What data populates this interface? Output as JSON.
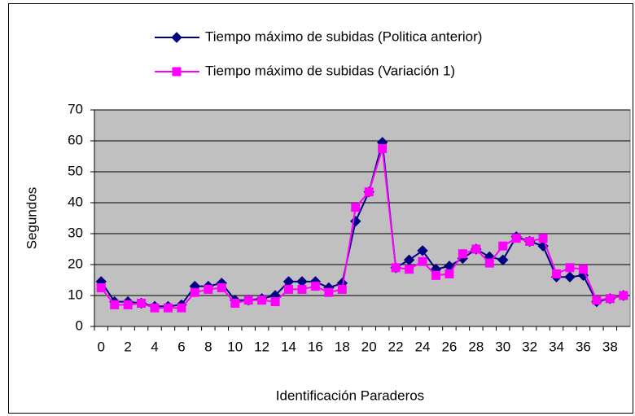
{
  "chart_data": {
    "type": "line",
    "xlabel": "Identificación Paraderos",
    "ylabel": "Segundos",
    "categories": [
      0,
      null,
      2,
      null,
      4,
      null,
      6,
      null,
      8,
      null,
      10,
      null,
      12,
      null,
      14,
      null,
      16,
      null,
      18,
      null,
      20,
      null,
      22,
      null,
      24,
      null,
      26,
      null,
      28,
      null,
      30,
      null,
      32,
      null,
      34,
      null,
      36,
      null,
      38,
      null
    ],
    "series": [
      {
        "name": "Tiempo  máximo de subidas (Politica anterior)",
        "color": "#000080",
        "marker": "diamond",
        "values": [
          14.5,
          8,
          8,
          7.5,
          6.5,
          6.5,
          7,
          13,
          13,
          14,
          8.5,
          8.5,
          9,
          10,
          14.5,
          14.5,
          14.5,
          12.5,
          14,
          34,
          43.5,
          59.5,
          19,
          21.5,
          24.5,
          18.5,
          19.5,
          22,
          25,
          22.5,
          21.5,
          29,
          27.5,
          26,
          16,
          16,
          16.5,
          8,
          9,
          10
        ]
      },
      {
        "name": "Tiempo  máximo de subidas (Variación 1)",
        "color": "#ff00ff",
        "marker": "square",
        "values": [
          12.5,
          7,
          7,
          7.5,
          6,
          6,
          6,
          11,
          12,
          12.5,
          7.5,
          8.5,
          8.5,
          8,
          12,
          12,
          13,
          11,
          12,
          38.5,
          43.5,
          57.5,
          19,
          18.5,
          21,
          16.5,
          17,
          23.5,
          25,
          20.5,
          26,
          28.5,
          27.5,
          28.5,
          17,
          19,
          18.5,
          8.5,
          9,
          10
        ]
      }
    ],
    "ylim": [
      0,
      70
    ],
    "yticks": [
      0,
      10,
      20,
      30,
      40,
      50,
      60,
      70
    ],
    "grid": true,
    "legend": "top",
    "plot_background": "#c0c0c0"
  }
}
